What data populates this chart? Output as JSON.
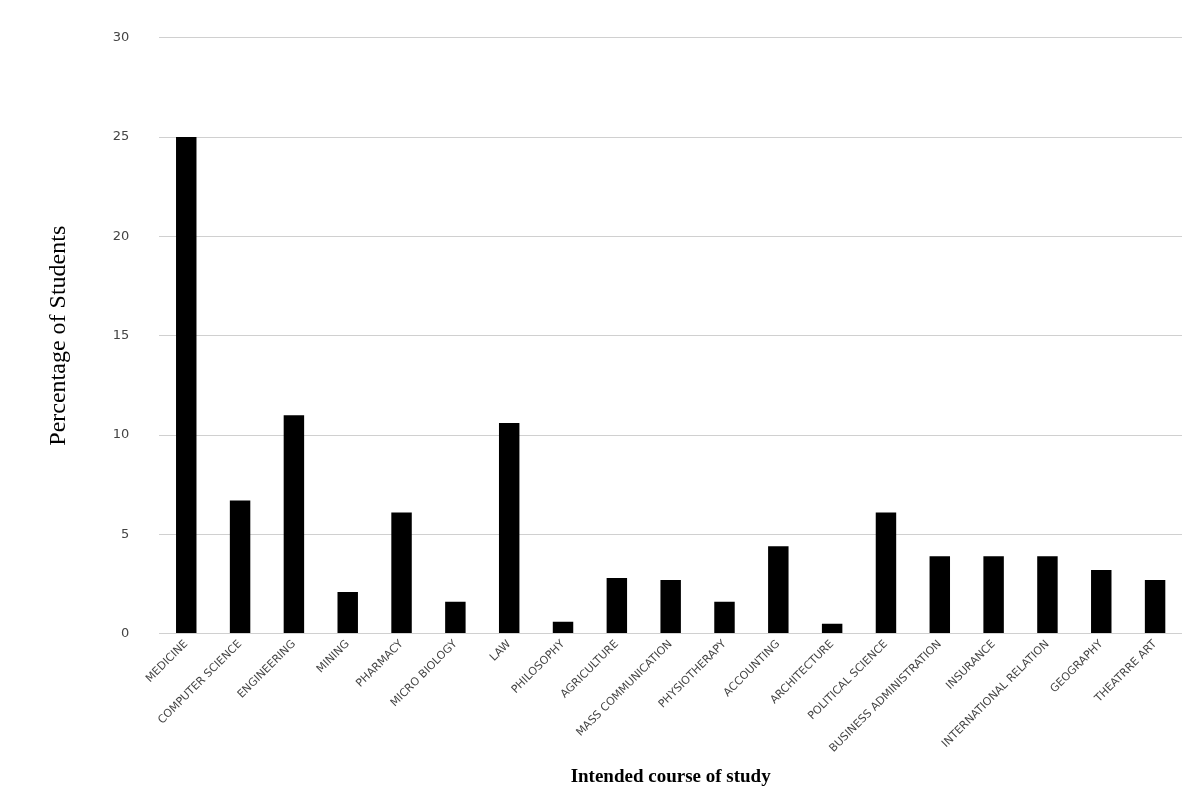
{
  "chart_data": {
    "type": "bar",
    "categories": [
      "MEDICINE",
      "COMPUTER SCIENCE",
      "ENGINEERING",
      "MINING",
      "PHARMACY",
      "MICRO BIOLOGY",
      "LAW",
      "PHILOSOPHY",
      "AGRICULTURE",
      "MASS COMMUNICATION",
      "PHYSIOTHERAPY",
      "ACCOUNTING",
      "ARCHITECTURE",
      "POLITICAL SCIENCE",
      "BUSINESS ADMINISTRATION",
      "INSURANCE",
      "INTERNATIONAL RELATION",
      "GEOGRAPHY",
      "THEATRRE ART"
    ],
    "values": [
      25,
      6.7,
      11,
      2.1,
      6.1,
      1.6,
      10.6,
      0.6,
      2.8,
      2.7,
      1.6,
      4.4,
      0.5,
      6.1,
      3.9,
      3.9,
      3.9,
      3.2,
      2.7
    ],
    "color": "#000000",
    "ylabel": "Percentage of Students",
    "xlabel": "Intended course of study",
    "ylim": [
      0,
      30
    ],
    "yticks": [
      0,
      5,
      10,
      15,
      20,
      25,
      30
    ],
    "grid": "y",
    "legend": false
  }
}
